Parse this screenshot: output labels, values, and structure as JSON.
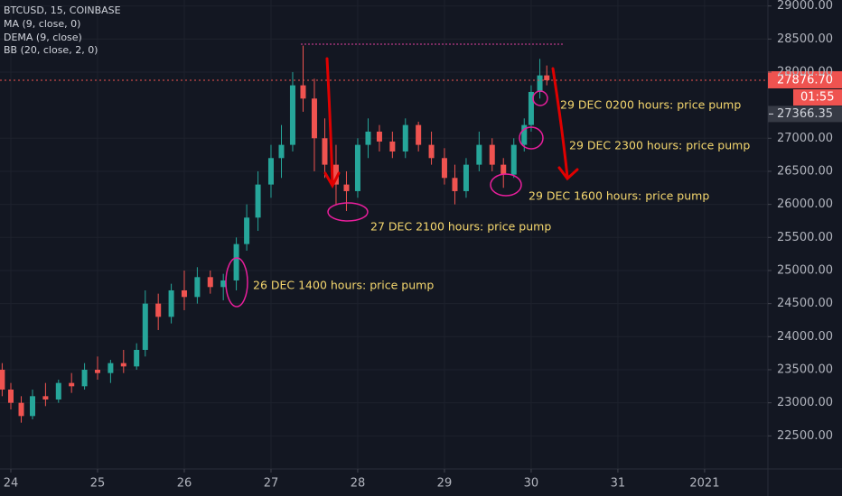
{
  "chart_data": {
    "type": "candlestick",
    "legend": [
      "BTCUSD, 15, COINBASE",
      "MA (9, close, 0)",
      "DEMA (9, close)",
      "BB (20, close, 2, 0)"
    ],
    "x": [
      23.9,
      24.0,
      24.12,
      24.25,
      24.4,
      24.55,
      24.7,
      24.85,
      25.0,
      25.15,
      25.3,
      25.45,
      25.55,
      25.7,
      25.85,
      26.0,
      26.15,
      26.3,
      26.45,
      26.6,
      26.72,
      26.85,
      27.0,
      27.12,
      27.25,
      27.37,
      27.5,
      27.62,
      27.75,
      27.87,
      28.0,
      28.12,
      28.25,
      28.4,
      28.55,
      28.7,
      28.85,
      29.0,
      29.12,
      29.25,
      29.4,
      29.55,
      29.68,
      29.8,
      29.92,
      30.0,
      30.1,
      30.18
    ],
    "open": [
      23500,
      23200,
      23000,
      22800,
      23100,
      23050,
      23300,
      23250,
      23500,
      23450,
      23600,
      23550,
      23800,
      24500,
      24300,
      24700,
      24600,
      24900,
      24750,
      24850,
      25400,
      25800,
      26300,
      26700,
      26900,
      27800,
      27600,
      27000,
      26600,
      26300,
      26200,
      26900,
      27100,
      26950,
      26800,
      27200,
      26900,
      26700,
      26400,
      26200,
      26600,
      26900,
      26600,
      26450,
      26900,
      27200,
      27700,
      27950
    ],
    "high": [
      23600,
      23300,
      23100,
      23200,
      23300,
      23350,
      23450,
      23600,
      23700,
      23650,
      23800,
      23900,
      24700,
      24650,
      24800,
      25000,
      25050,
      25000,
      24950,
      25500,
      26000,
      26500,
      26900,
      27200,
      28000,
      28400,
      27900,
      27300,
      26900,
      26500,
      27000,
      27300,
      27200,
      27100,
      27300,
      27250,
      27100,
      26850,
      26600,
      26700,
      27100,
      27000,
      26700,
      27000,
      27300,
      27800,
      28200,
      28100
    ],
    "low": [
      23100,
      22900,
      22700,
      22750,
      22950,
      23000,
      23150,
      23200,
      23350,
      23300,
      23450,
      23500,
      23700,
      24100,
      24200,
      24400,
      24500,
      24650,
      24550,
      24700,
      25300,
      25600,
      26100,
      26400,
      26800,
      27400,
      26500,
      26400,
      26000,
      25900,
      26100,
      26700,
      26800,
      26700,
      26700,
      26800,
      26600,
      26300,
      26000,
      26100,
      26500,
      26500,
      26250,
      26400,
      26800,
      27100,
      27600,
      27800
    ],
    "close": [
      23200,
      23000,
      22800,
      23100,
      23050,
      23300,
      23250,
      23500,
      23450,
      23600,
      23550,
      23800,
      24500,
      24300,
      24700,
      24600,
      24900,
      24750,
      24850,
      25400,
      25800,
      26300,
      26700,
      26900,
      27800,
      27600,
      27000,
      26600,
      26300,
      26200,
      26900,
      27100,
      26950,
      26800,
      27200,
      26900,
      26700,
      26400,
      26200,
      26600,
      26900,
      26600,
      26450,
      26900,
      27200,
      27700,
      27950,
      27876.7
    ],
    "up_color": "#26a69a",
    "down_color": "#ef5350",
    "xlim": [
      23.875,
      32.73
    ],
    "xticks": [
      24,
      25,
      26,
      27,
      28,
      29,
      30,
      31,
      {
        "value": 32,
        "label": "2021"
      }
    ],
    "ylim": [
      29090,
      22000
    ],
    "yticks": [
      {
        "value": 29000,
        "label": "29000.00"
      },
      {
        "value": 28500,
        "label": "28500.00"
      },
      {
        "value": 28000,
        "label": "28000.00"
      },
      {
        "value": 27000,
        "label": "27000.00"
      },
      {
        "value": 26500,
        "label": "26500.00"
      },
      {
        "value": 26000,
        "label": "26000.00"
      },
      {
        "value": 25500,
        "label": "25500.00"
      },
      {
        "value": 25000,
        "label": "25000.00"
      },
      {
        "value": 24500,
        "label": "24500.00"
      },
      {
        "value": 24000,
        "label": "24000.00"
      },
      {
        "value": 23500,
        "label": "23500.00"
      },
      {
        "value": 23000,
        "label": "23000.00"
      },
      {
        "value": 22500,
        "label": "22500.00"
      }
    ],
    "last_price": {
      "value": 27876.7,
      "label": "27876.70"
    },
    "countdown": "01:55",
    "indicator_price": {
      "value": 27366.35,
      "label": "27366.35"
    },
    "grid": true,
    "annotations": [
      "26 DEC 1400 hours: price pump",
      "27 DEC 2100 hours: price pump",
      "29 DEC 1600 hours: price pump",
      "29 DEC 2300 hours: price pump",
      "29 DEC 0200 hours: price pump"
    ]
  }
}
